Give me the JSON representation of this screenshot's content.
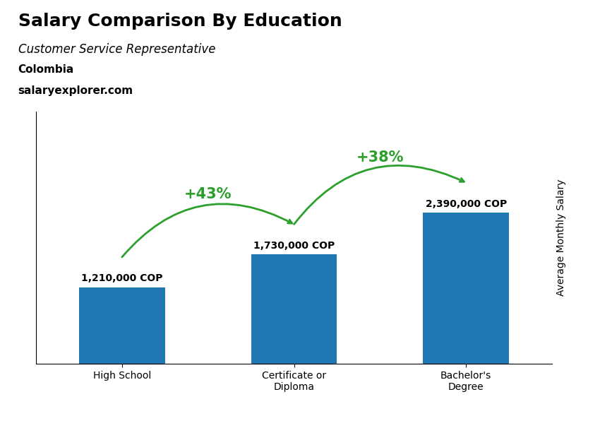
{
  "chart_data": {
    "type": "bar",
    "title": "Salary Comparison By Education",
    "subtitle": "Customer Service Representative",
    "ylabel": "Average Monthly Salary",
    "categories": [
      "High School",
      "Certificate or\nDiploma",
      "Bachelor's\nDegree"
    ],
    "values": [
      1210000,
      1730000,
      2390000
    ],
    "value_labels": [
      "1,210,000 COP",
      "1,730,000 COP",
      "2,390,000 COP"
    ],
    "data_labels": true,
    "ylim": [
      0,
      4000000
    ],
    "tick_labels": "x",
    "grid": false,
    "annotations": [
      {
        "text": "Colombia"
      },
      {
        "text": "salaryexplorer.com"
      },
      {
        "text": "+43%",
        "from": 0,
        "to": 1
      },
      {
        "text": "+38%",
        "from": 1,
        "to": 2
      }
    ]
  }
}
